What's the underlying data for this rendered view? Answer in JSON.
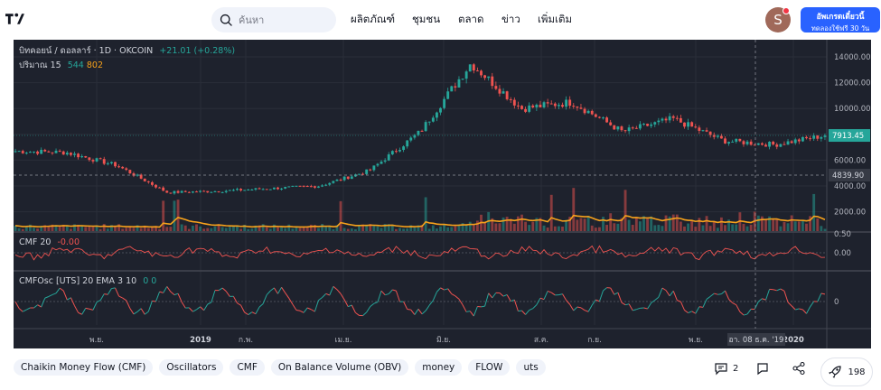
{
  "header": {
    "search_placeholder": "ค้นหา",
    "nav": [
      "ผลิตภัณฑ์",
      "ชุมชน",
      "ตลาด",
      "ข่าว",
      "เพิ่มเติม"
    ],
    "avatar_letter": "S",
    "upgrade_line1": "อัพเกรดเดี๋ยวนี้",
    "upgrade_line2": "ทดลองใช้ฟรี 30 วัน"
  },
  "chart": {
    "symbol_title": "บิทคอยน์ / ดอลลาร์ · 1D · OKCOIN",
    "change": "+21.01 (+0.28%)",
    "volume_label": "ปริมาณ 15",
    "volume_value1": "544",
    "volume_value2": "802",
    "cmf_label": "CMF 20",
    "cmf_value": "-0.00",
    "cmfosc_label": "CMFOsc [UTS] 20 EMA 3 10",
    "cmfosc_value1": "0",
    "cmfosc_value2": "0",
    "price_axis": [
      "14000.00",
      "12000.00",
      "10000.00",
      "8000.00",
      "6000.00",
      "4000.00",
      "2000.00"
    ],
    "last_price": "7913.45",
    "crosshair_price": "4839.90",
    "cmf_axis": [
      "0.50",
      "0.00"
    ],
    "osc_axis": "0",
    "time_axis": [
      "พ.ย.",
      "2019",
      "ก.พ.",
      "เม.ย.",
      "มิ.ย.",
      "ส.ค.",
      "ก.ย.",
      "พ.ย.",
      "2020"
    ],
    "crosshair_date": "อา. 08 ธ.ค. '19",
    "colors": {
      "up": "#26a69a",
      "down": "#ef5350",
      "ema": "#f7a21b",
      "last_price": "#26a69a"
    }
  },
  "chart_data": {
    "type": "candlestick",
    "title": "บิทคอยน์ / ดอลลาร์ · 1D · OKCOIN",
    "ylim": [
      0,
      15000
    ],
    "price_series": [
      {
        "x": "2018-09",
        "y": 6700
      },
      {
        "x": "2018-10",
        "y": 6600
      },
      {
        "x": "2018-11",
        "y": 5600
      },
      {
        "x": "2018-12",
        "y": 3500
      },
      {
        "x": "2019-01",
        "y": 3600
      },
      {
        "x": "2019-02",
        "y": 3800
      },
      {
        "x": "2019-03",
        "y": 4000
      },
      {
        "x": "2019-04",
        "y": 5200
      },
      {
        "x": "2019-05",
        "y": 8200
      },
      {
        "x": "2019-06",
        "y": 13500
      },
      {
        "x": "2019-07",
        "y": 10000
      },
      {
        "x": "2019-08",
        "y": 10500
      },
      {
        "x": "2019-09",
        "y": 8200
      },
      {
        "x": "2019-10",
        "y": 9200
      },
      {
        "x": "2019-11",
        "y": 7500
      },
      {
        "x": "2019-12",
        "y": 7200
      },
      {
        "x": "2020-01",
        "y": 7913
      }
    ]
  },
  "tags": [
    "Chaikin Money Flow (CMF)",
    "Oscillators",
    "CMF",
    "On Balance Volume (OBV)",
    "money",
    "FLOW",
    "uts"
  ],
  "actions": {
    "comments": "2",
    "boosts": "198"
  }
}
